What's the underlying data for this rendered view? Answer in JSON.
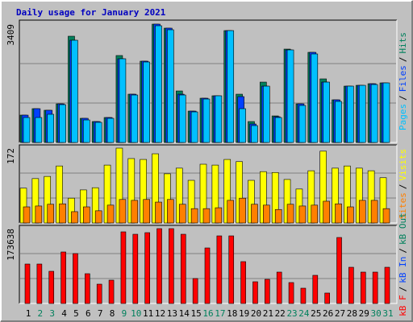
{
  "chart_data": [
    {
      "type": "bar",
      "title": "Daily usage for January 2021",
      "ylim": [
        0,
        3409
      ],
      "yticks": [
        3409
      ],
      "legend_separator": "/",
      "series": [
        {
          "name": "Pages",
          "color": "#00c0ff",
          "values": [
            719,
            719,
            812,
            1090,
            2945,
            649,
            580,
            696,
            2412,
            1368,
            2319,
            3363,
            3247,
            1368,
            881,
            1252,
            1345,
            3223,
            974,
            487,
            1623,
            719,
            2667,
            1067,
            2551,
            1739,
            1183,
            1623,
            1646,
            1670,
            1716
          ]
        },
        {
          "name": "Files",
          "color": "#0040ff",
          "values": [
            788,
            974,
            928,
            1113,
            2945,
            696,
            603,
            719,
            2412,
            1391,
            2342,
            3409,
            3293,
            1391,
            904,
            1275,
            1345,
            3223,
            1322,
            533,
            1623,
            742,
            2667,
            1113,
            2597,
            1739,
            1229,
            1623,
            1646,
            1693,
            1716
          ]
        },
        {
          "name": "Hits",
          "color": "#00805c",
          "values": [
            788,
            974,
            928,
            1113,
            3061,
            696,
            603,
            719,
            2505,
            1391,
            2342,
            3409,
            3293,
            1484,
            904,
            1275,
            1345,
            3223,
            1391,
            603,
            1739,
            765,
            2690,
            1113,
            2597,
            1832,
            1229,
            1623,
            1646,
            1693,
            1716
          ]
        }
      ]
    },
    {
      "type": "bar",
      "ylim": [
        0,
        172
      ],
      "yticks": [
        172
      ],
      "legend_separator": "/",
      "series": [
        {
          "name": "Sites",
          "color": "#ff8000",
          "values": [
            37,
            39,
            43,
            44,
            26,
            37,
            28,
            41,
            54,
            52,
            54,
            48,
            54,
            43,
            33,
            33,
            35,
            52,
            57,
            43,
            41,
            31,
            43,
            39,
            41,
            50,
            44,
            37,
            52,
            52,
            33
          ]
        },
        {
          "name": "Visits",
          "color": "#ffff00",
          "values": [
            80,
            102,
            107,
            131,
            57,
            76,
            81,
            133,
            172,
            148,
            146,
            159,
            113,
            126,
            98,
            135,
            133,
            146,
            141,
            98,
            118,
            116,
            100,
            78,
            120,
            165,
            126,
            131,
            126,
            120,
            104
          ]
        }
      ]
    },
    {
      "type": "bar",
      "ylim": [
        0,
        173638
      ],
      "yticks": [
        173638
      ],
      "legend_separator": "/",
      "categories": [
        "1",
        "2",
        "3",
        "4",
        "5",
        "6",
        "7",
        "8",
        "9",
        "10",
        "11",
        "12",
        "13",
        "14",
        "15",
        "16",
        "17",
        "18",
        "19",
        "20",
        "21",
        "22",
        "23",
        "24",
        "25",
        "26",
        "27",
        "28",
        "29",
        "30",
        "31"
      ],
      "category_colors": [
        "#000000",
        "#00805c",
        "#00805c",
        "#000000",
        "#000000",
        "#000000",
        "#000000",
        "#000000",
        "#00805c",
        "#00805c",
        "#000000",
        "#000000",
        "#000000",
        "#000000",
        "#000000",
        "#00805c",
        "#00805c",
        "#000000",
        "#000000",
        "#000000",
        "#000000",
        "#000000",
        "#00805c",
        "#00805c",
        "#000000",
        "#000000",
        "#000000",
        "#000000",
        "#000000",
        "#00805c",
        "#00805c"
      ],
      "series": [
        {
          "name": "kB F",
          "color": "#ff0000",
          "values": [
            91483,
            91483,
            74680,
            119488,
            115754,
            69079,
            44808,
            54143,
            166163,
            160562,
            164296,
            173638,
            173638,
            160562,
            57877,
            128823,
            156828,
            156828,
            97084,
            50409,
            56010,
            72813,
            48542,
            35473,
            65345,
            24271,
            153094,
            84015,
            72813,
            72813,
            84015
          ]
        }
      ],
      "legend_extra": [
        {
          "name": "kB In",
          "color": "#0040ff"
        },
        {
          "name": "kB Out",
          "color": "#00805c"
        }
      ]
    }
  ]
}
